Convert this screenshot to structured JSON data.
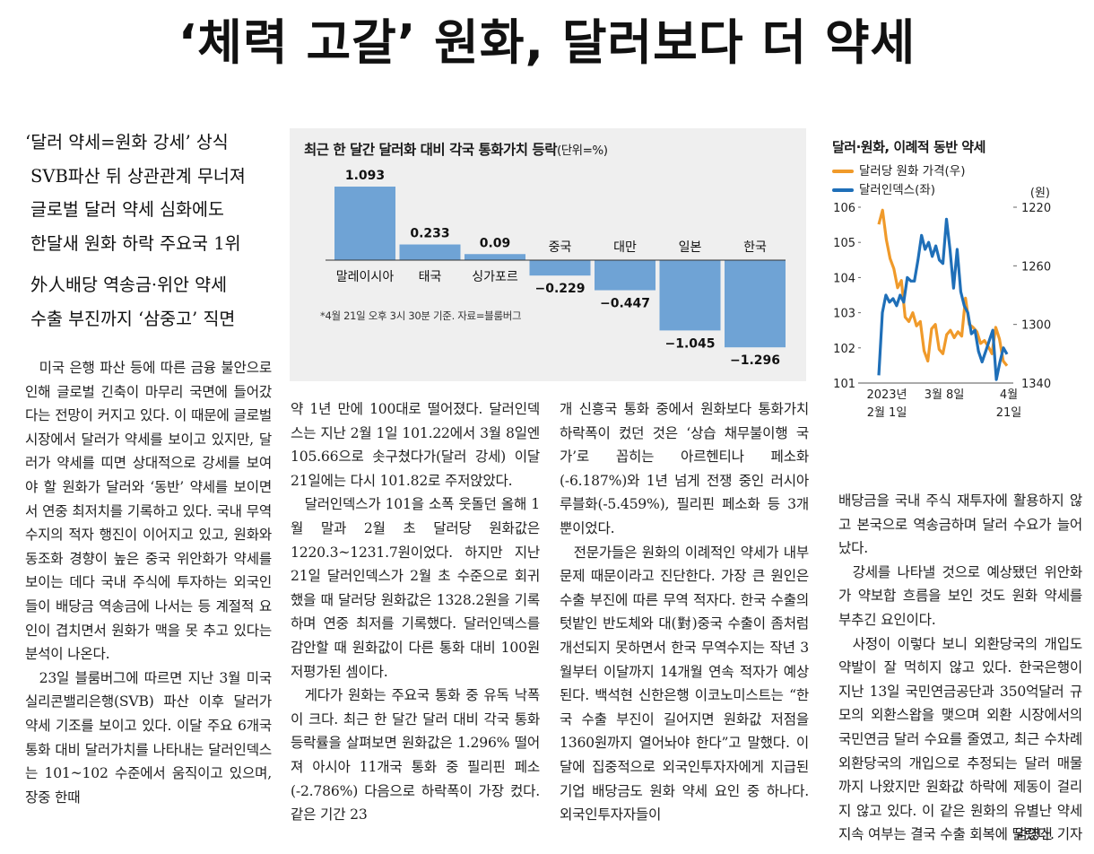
{
  "headline": "‘체력 고갈’ 원화, 달러보다 더 약세",
  "subheads": [
    "‘달러 약세=원화 강세’ 상식",
    "SVB파산 뒤 상관관계 무너져",
    "글로벌 달러 약세 심화에도",
    "한달새 원화 하락 주요국 1위",
    "外人배당 역송금·위안 약세",
    "수출 부진까지 ‘삼중고’ 직면"
  ],
  "body": {
    "col1": [
      "미국 은행 파산 등에 따른 금융 불안으로 인해 글로벌 긴축이 마무리 국면에 들어갔다는 전망이 커지고 있다. 이 때문에 글로벌 시장에서 달러가 약세를 보이고 있지만, 달러가 약세를 띠면 상대적으로 강세를 보여야 할 원화가 달러와 ‘동반’ 약세를 보이면서 연중 최저치를 기록하고 있다. 국내 무역수지의 적자 행진이 이어지고 있고, 원화와 동조화 경향이 높은 중국 위안화가 약세를 보이는 데다 국내 주식에 투자하는 외국인들이 배당금 역송금에 나서는 등 계절적 요인이 겹치면서 원화가 맥을 못 추고 있다는 분석이 나온다.",
      "23일 블룸버그에 따르면 지난 3월 미국 실리콘밸리은행(SVB) 파산 이후 달러가 약세 기조를 보이고 있다. 이달 주요 6개국 통화 대비 달러가치를 나타내는 달러인덱스는 101~102 수준에서 움직이고 있으며, 장중 한때"
    ],
    "col2": [
      "약 1년 만에 100대로 떨어졌다. 달러인덱스는 지난 2월 1일 101.22에서 3월 8일엔 105.66으로 솟구쳤다가(달러 강세) 이달 21일에는 다시 101.82로 주저앉았다.",
      "달러인덱스가 101을 소폭 웃돌던 올해 1월 말과 2월 초 달러당 원화값은 1220.3~1231.7원이었다. 하지만 지난 21일 달러인덱스가 2월 초 수준으로 회귀했을 때 달러당 원화값은 1328.2원을 기록하며 연중 최저를 기록했다. 달러인덱스를 감안할 때 원화값이 다른 통화 대비 100원 저평가된 셈이다.",
      "게다가 원화는 주요국 통화 중 유독 낙폭이 크다. 최근 한 달간 달러 대비 각국 통화 등락률을 살펴보면 원화값은 1.296% 떨어져 아시아 11개국 통화 중 필리핀 페소(-2.786%) 다음으로 하락폭이 가장 컸다. 같은 기간 23"
    ],
    "col3": [
      "개 신흥국 통화 중에서 원화보다 통화가치 하락폭이 컸던 것은 ‘상습 채무불이행 국가’로 꼽히는 아르헨티나 페소화(-6.187%)와 1년 넘게 전쟁 중인 러시아 루블화(-5.459%), 필리핀 페소화 등 3개뿐이었다.",
      "전문가들은 원화의 이례적인 약세가 내부 문제 때문이라고 진단한다. 가장 큰 원인은 수출 부진에 따른 무역 적자다. 한국 수출의 텃밭인 반도체와 대(對)중국 수출이 좀처럼 개선되지 못하면서 한국 무역수지는 작년 3월부터 이달까지 14개월 연속 적자가 예상된다. 백석현 신한은행 이코노미스트는 “한국 수출 부진이 길어지면 원화값 저점을 1360원까지 열어놔야 한다”고 말했다. 이달에 집중적으로 외국인투자자에게 지급된 기업 배당금도 원화 약세 요인 중 하나다. 외국인투자자들이"
    ],
    "col4": [
      "배당금을 국내 주식 재투자에 활용하지 않고 본국으로 역송금하며 달러 수요가 늘어났다.",
      "강세를 나타낼 것으로 예상됐던 위안화가 약보합 흐름을 보인 것도 원화 약세를 부추긴 요인이다.",
      "사정이 이렇다 보니 외환당국의 개입도 약발이 잘 먹히지 않고 있다. 한국은행이 지난 13일 국민연금공단과 350억달러 규모의 외환스왑을 맺으며 외환 시장에서의 국민연금 달러 수요를 줄였고, 최근 수차례 외환당국의 개입으로 추정되는 달러 매물까지 나왔지만 원화값 하락에 제동이 걸리지 않고 있다. 이 같은 원화의 유별난 약세 지속 여부는 결국 수출 회복에 달렸다."
    ],
    "byline": "임영신 기자"
  },
  "colors": {
    "bar": "#6fa3d5",
    "panel_bg": "#efefef",
    "won_line": "#f09a2a",
    "dxy_line": "#1f6fb8"
  },
  "chart_data": [
    {
      "type": "bar",
      "title": "최근 한 달간 달러화 대비 각국 통화가치 등락",
      "unit_label": "(단위=%)",
      "categories": [
        "말레이시아",
        "태국",
        "싱가포르",
        "중국",
        "대만",
        "일본",
        "한국"
      ],
      "values": [
        1.093,
        0.233,
        0.09,
        -0.229,
        -0.447,
        -1.045,
        -1.296
      ],
      "value_labels": [
        "1.093",
        "0.233",
        "0.09",
        "−0.229",
        "−0.447",
        "−1.045",
        "−1.296"
      ],
      "note": "*4월 21일 오후 3시 30분 기준. 자료=블룸버그",
      "xlabel": "",
      "ylabel": "%",
      "grid": false
    },
    {
      "type": "line",
      "title": "달러·원화, 이례적 동반 약세",
      "legend": [
        "달러당 원화 가격(우)",
        "달러인덱스(좌)"
      ],
      "legend_position": "top-left",
      "x_ticks": [
        "2023년\n2월 1일",
        "3월 8일",
        "4월\n21일"
      ],
      "y_left": {
        "label": "",
        "ticks": [
          101,
          102,
          103,
          104,
          105,
          106
        ],
        "range": [
          101,
          106
        ]
      },
      "y_right": {
        "label": "(원)",
        "ticks": [
          1220,
          1260,
          1300,
          1340
        ],
        "range": [
          1220,
          1340
        ],
        "inverted": true
      },
      "series": [
        {
          "name": "달러인덱스(좌)",
          "axis": "left",
          "values": [
            101.22,
            103.0,
            103.5,
            103.3,
            103.4,
            103.2,
            103.5,
            103.3,
            104.0,
            103.9,
            103.9,
            104.5,
            105.2,
            104.8,
            105.0,
            104.6,
            104.9,
            104.5,
            104.4,
            105.66,
            104.8,
            103.7,
            104.8,
            103.6,
            103.2,
            103.0,
            102.4,
            102.5,
            101.9,
            101.6,
            101.9,
            102.2,
            102.5,
            101.1,
            101.6,
            102.0,
            101.82
          ]
        },
        {
          "name": "달러당 원화 가격(우)",
          "axis": "right",
          "values": [
            1231.7,
            1222.0,
            1242.0,
            1255.0,
            1262.0,
            1275.0,
            1270.0,
            1295.0,
            1298.0,
            1292.0,
            1301.0,
            1298.0,
            1318.0,
            1325.0,
            1303.0,
            1300.0,
            1317.0,
            1320.0,
            1307.0,
            1304.0,
            1309.0,
            1305.0,
            1308.0,
            1282.0,
            1300.0,
            1302.0,
            1305.0,
            1313.0,
            1311.0,
            1315.0,
            1320.0,
            1302.0,
            1310.0,
            1325.0,
            1328.2
          ]
        }
      ]
    }
  ]
}
